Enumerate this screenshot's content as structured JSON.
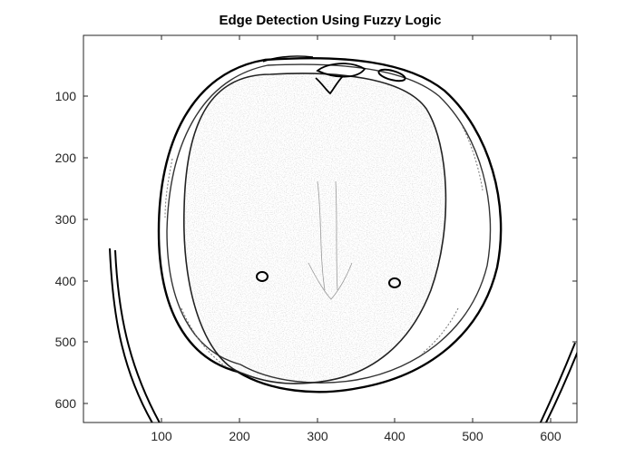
{
  "figure": {
    "title": "Edge Detection Using Fuzzy Logic"
  },
  "axes": {
    "x_ticks": [
      "100",
      "200",
      "300",
      "400",
      "500",
      "600"
    ],
    "y_ticks": [
      "100",
      "200",
      "300",
      "400",
      "500",
      "600"
    ],
    "box_color": "#262626",
    "image_description": "grayscale edge map of axial brain CT slice: skull outline, inner brain boundary, speckled interior, two small circular features, cropped curved boundary in lower corners"
  }
}
